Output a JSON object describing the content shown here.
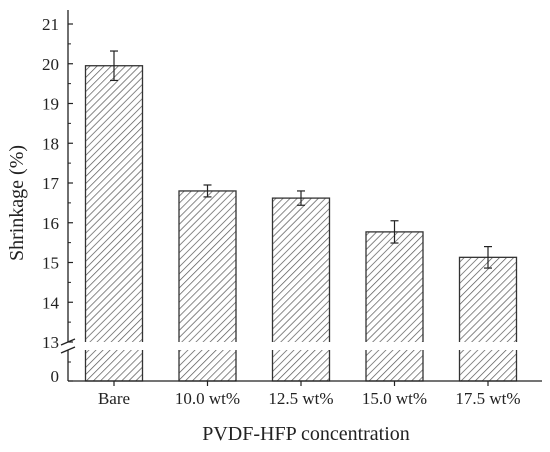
{
  "chart_data": {
    "type": "bar",
    "categories": [
      "Bare",
      "10.0 wt%",
      "12.5 wt%",
      "15.0 wt%",
      "17.5 wt%"
    ],
    "values": [
      19.95,
      16.8,
      16.62,
      15.77,
      15.13
    ],
    "errors": [
      0.37,
      0.15,
      0.18,
      0.28,
      0.27
    ],
    "xlabel": "PVDF-HFP concentration",
    "ylabel": "Shrinkage (%)",
    "ylim": [
      13,
      21
    ],
    "axis_break": {
      "low_tick": 0,
      "resumes_at": 13
    },
    "yticks_upper": [
      13,
      14,
      15,
      16,
      17,
      18,
      19,
      20,
      21
    ],
    "yticks_lower": [
      0
    ],
    "bar_fill": "hatched",
    "colors": {
      "bar_stroke": "#333333",
      "hatch": "#555555",
      "axis": "#222222"
    },
    "grid": false
  }
}
